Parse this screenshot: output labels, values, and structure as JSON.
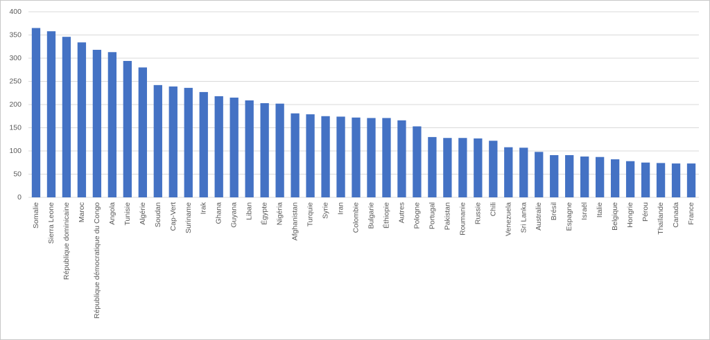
{
  "chart_data": {
    "type": "bar",
    "categories": [
      "Somalie",
      "Sierra Leone",
      "République dominicaine",
      "Maroc",
      "République démocratique du Congo",
      "Angola",
      "Tunisie",
      "Algérie",
      "Soudan",
      "Cap-Vert",
      "Suriname",
      "Irak",
      "Ghana",
      "Guyana",
      "Liban",
      "Égypte",
      "Nigéria",
      "Afghanistan",
      "Turquie",
      "Syrie",
      "Iran",
      "Colombie",
      "Bulgarie",
      "Éthiopie",
      "Autres",
      "Pologne",
      "Portugal",
      "Pakistan",
      "Roumanie",
      "Russie",
      "Chili",
      "Venezuela",
      "Sri Lanka",
      "Australie",
      "Brésil",
      "Espagne",
      "Israël",
      "Italie",
      "Belgique",
      "Hongrie",
      "Pérou",
      "Thaïlande",
      "Canada",
      "France"
    ],
    "values": [
      365,
      358,
      346,
      334,
      318,
      313,
      294,
      280,
      242,
      239,
      236,
      227,
      218,
      215,
      209,
      203,
      202,
      181,
      179,
      175,
      174,
      172,
      171,
      171,
      166,
      153,
      130,
      128,
      128,
      127,
      122,
      108,
      107,
      98,
      91,
      91,
      88,
      87,
      82,
      78,
      75,
      74,
      73,
      73
    ],
    "color": "#4472c4",
    "ylim": [
      0,
      400
    ],
    "yticks": [
      0,
      50,
      100,
      150,
      200,
      250,
      300,
      350,
      400
    ],
    "grid": true
  }
}
